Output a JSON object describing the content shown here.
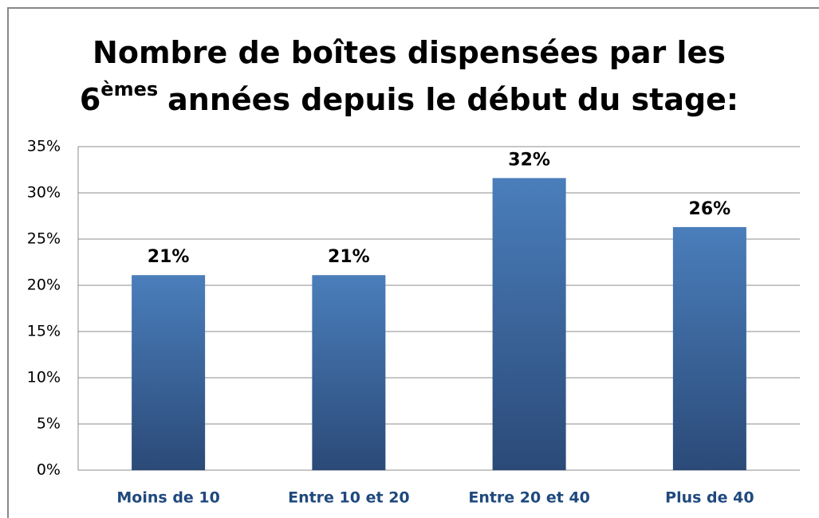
{
  "chart_data": {
    "type": "bar",
    "title": [
      "Nombre de boîtes dispensées par les",
      "6",
      "èmes",
      "années depuis le début du stage:"
    ],
    "categories": [
      "Moins de 10",
      "Entre 10 et 20",
      "Entre 20 et 40",
      "Plus de 40"
    ],
    "values": [
      21.1,
      21.1,
      31.6,
      26.3
    ],
    "value_labels": [
      "21%",
      "21%",
      "32%",
      "26%"
    ],
    "color": "#4a7ebb",
    "ylim": [
      0,
      35
    ],
    "yticks": [
      {
        "value": 0,
        "label": "0%"
      },
      {
        "value": 5,
        "label": "5%"
      },
      {
        "value": 10,
        "label": "10%"
      },
      {
        "value": 15,
        "label": "15%"
      },
      {
        "value": 20,
        "label": "20%"
      },
      {
        "value": 25,
        "label": "25%"
      },
      {
        "value": 30,
        "label": "30%"
      },
      {
        "value": 35,
        "label": "35%"
      }
    ],
    "grid": true
  }
}
